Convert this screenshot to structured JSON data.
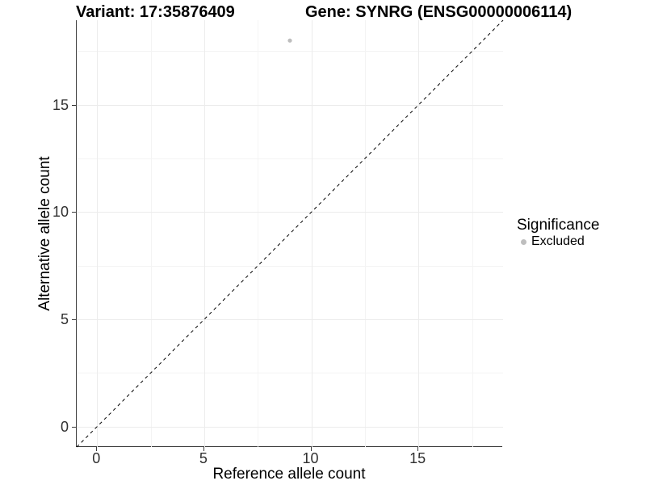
{
  "chart_data": {
    "type": "scatter",
    "titles": {
      "left": "Variant: 17:35876409",
      "right": "Gene: SYNRG (ENSG00000006114)"
    },
    "xlabel": "Reference allele count",
    "ylabel": "Alternative allele count",
    "xlim": [
      -0.95,
      18.95
    ],
    "ylim": [
      -0.95,
      18.95
    ],
    "x_major_ticks": [
      0,
      5,
      10,
      15
    ],
    "x_minor_ticks": [
      2.5,
      7.5,
      12.5,
      17.5
    ],
    "y_major_ticks": [
      0,
      5,
      10,
      15
    ],
    "y_minor_ticks": [
      2.5,
      7.5,
      12.5,
      17.5
    ],
    "grid": true,
    "identity_line": {
      "slope": 1,
      "intercept": 0,
      "style": "dashed",
      "color": "#000000"
    },
    "series": [
      {
        "name": "Excluded",
        "color": "#bebebe",
        "points": [
          {
            "x": 9,
            "y": 18
          }
        ]
      }
    ],
    "legend": {
      "title": "Significance",
      "position": "right",
      "items": [
        {
          "label": "Excluded",
          "color": "#bebebe",
          "marker": "circle"
        }
      ]
    },
    "colors": {
      "grid_major": "#ececec",
      "grid_minor": "#f4f4f4",
      "axis_line": "#3c3c3c",
      "tick_text": "#303030",
      "title_text": "#000000",
      "point": "#bebebe"
    }
  }
}
